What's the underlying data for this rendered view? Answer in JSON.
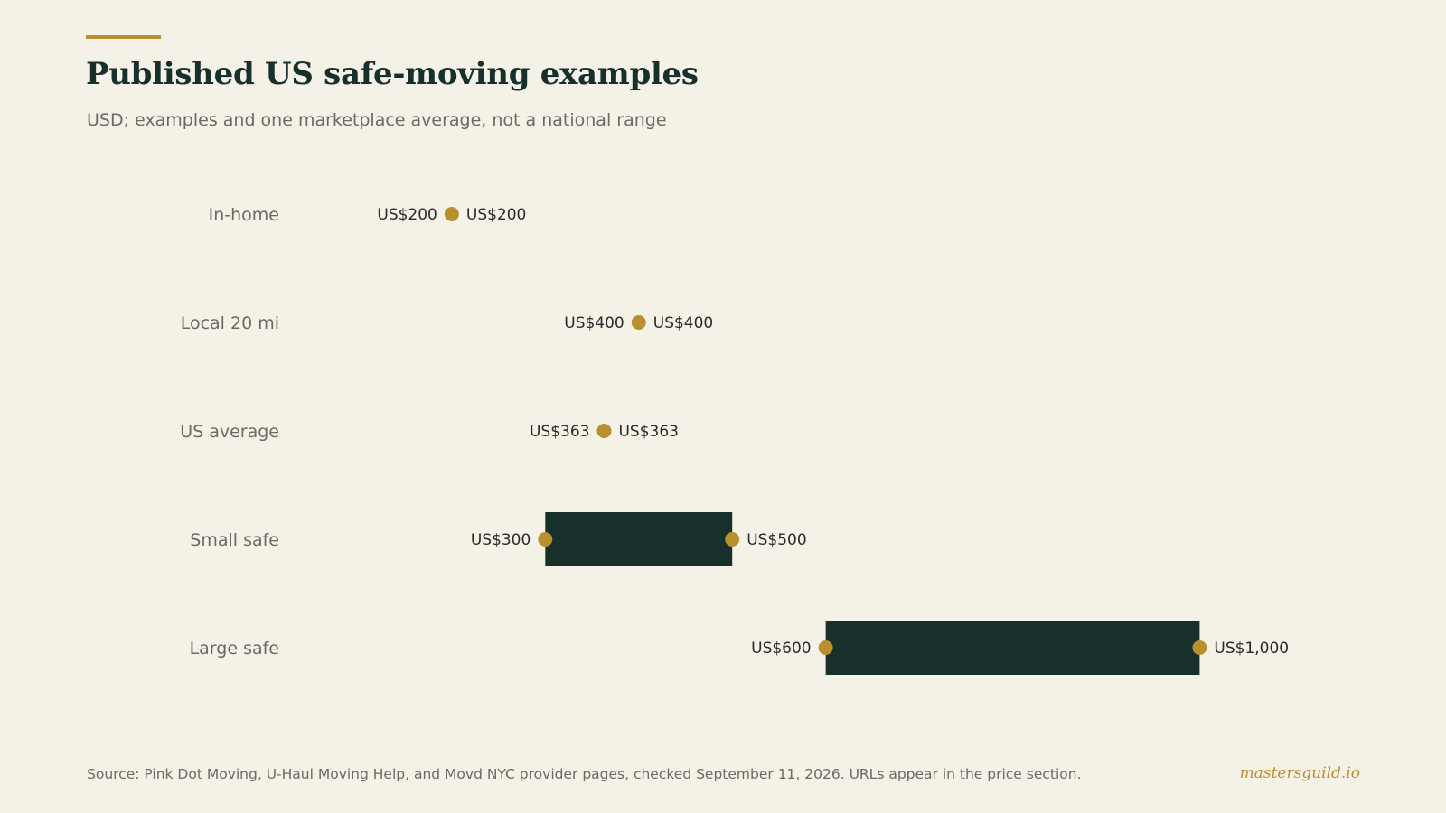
{
  "title": "Published US safe-moving examples",
  "subtitle": "USD; examples and one marketplace average, not a national range",
  "source": "Source: Pink Dot Moving, U-Haul Moving Help, and Movd NYC provider pages, checked September 11, 2026. URLs appear in the price section.",
  "brand": "mastersguild.io",
  "colors": {
    "background": "#f4f1e7",
    "accent": "#b8902f",
    "bar": "#17302b",
    "label": "#6b6a63",
    "value_text": "#2a2a2a"
  },
  "chart_data": {
    "type": "bar",
    "orientation": "horizontal-range",
    "categories": [
      "In-home",
      "Local 20 mi",
      "US average",
      "Small safe",
      "Large safe"
    ],
    "series": [
      {
        "low": [
          200,
          400,
          363,
          300,
          600
        ],
        "high": [
          200,
          400,
          363,
          500,
          1000
        ]
      }
    ],
    "value_labels_low": [
      "US$200",
      "US$400",
      "US$363",
      "US$300",
      "US$600"
    ],
    "value_labels_high": [
      "US$200",
      "US$400",
      "US$363",
      "US$500",
      "US$1,000"
    ],
    "xlim": [
      0,
      1100
    ],
    "grid": false,
    "xlabel": "",
    "ylabel": ""
  }
}
